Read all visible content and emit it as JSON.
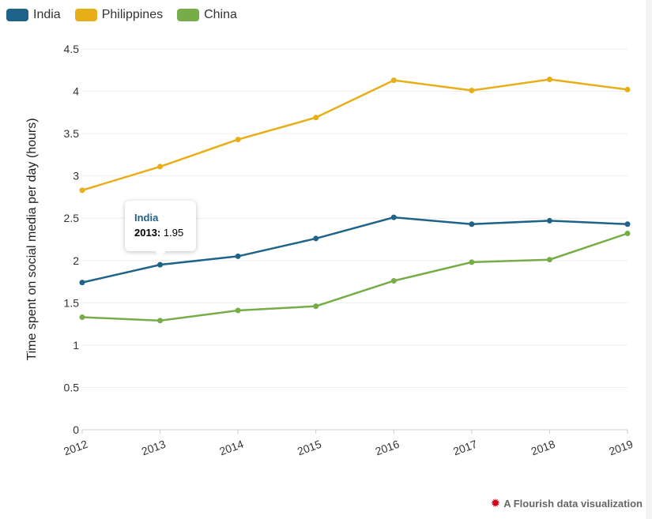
{
  "chart_data": {
    "type": "line",
    "x": [
      "2012",
      "2013",
      "2014",
      "2015",
      "2016",
      "2017",
      "2018",
      "2019"
    ],
    "series": [
      {
        "name": "India",
        "color": "#1f6388",
        "values": [
          1.74,
          1.95,
          2.05,
          2.26,
          2.51,
          2.43,
          2.47,
          2.43
        ]
      },
      {
        "name": "Philippines",
        "color": "#e8ae17",
        "values": [
          2.83,
          3.11,
          3.43,
          3.69,
          4.13,
          4.01,
          4.14,
          4.02
        ]
      },
      {
        "name": "China",
        "color": "#77ad48",
        "values": [
          1.33,
          1.29,
          1.41,
          1.46,
          1.76,
          1.98,
          2.01,
          2.32
        ]
      }
    ],
    "ylabel": "Time spent on social media per day (hours)",
    "ylim": [
      0,
      4.5
    ],
    "yticks": [
      "0",
      "0.5",
      "1",
      "1.5",
      "2",
      "2.5",
      "3",
      "3.5",
      "4",
      "4.5"
    ],
    "grid": true,
    "legend": "top-left"
  },
  "tooltip": {
    "series": "India",
    "year": "2013",
    "value": "1.95"
  },
  "credit": "A Flourish data visualization"
}
